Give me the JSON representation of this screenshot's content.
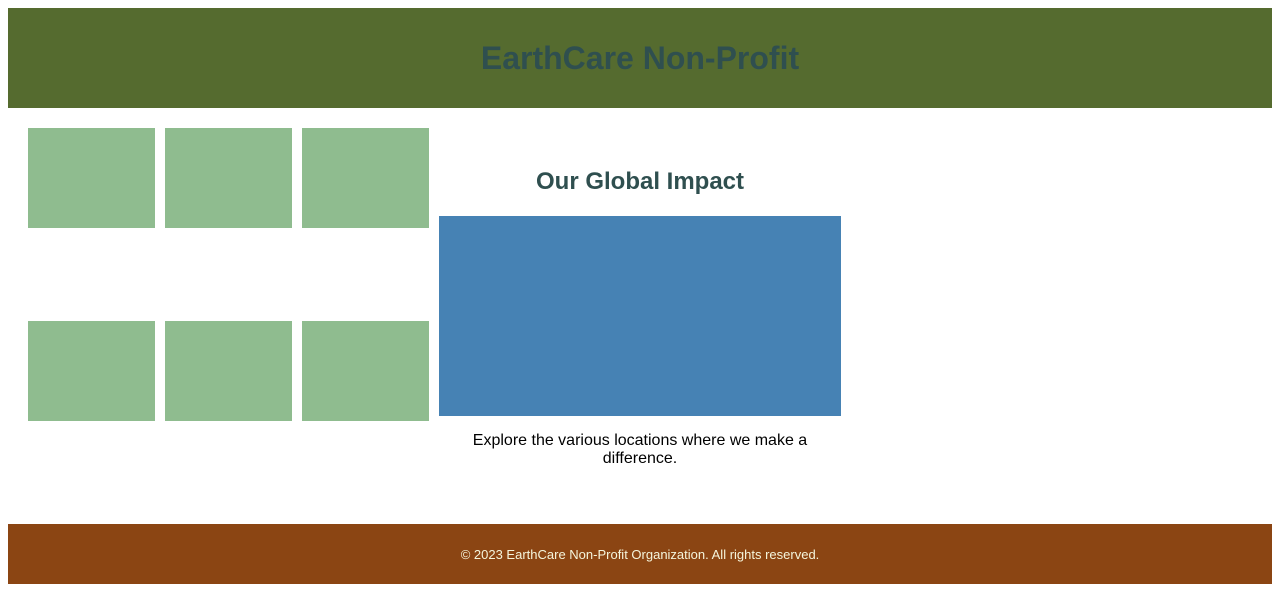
{
  "colors": {
    "header_bg": "#556b2f",
    "title_text": "#2f4f4f",
    "tile": "#8fbc8f",
    "map": "#4682b4",
    "footer_bg": "#8b4513",
    "footer_text": "#f5f5dc"
  },
  "header": {
    "title": "EarthCare Non-Profit"
  },
  "gallery": {
    "tiles": [
      "",
      "",
      "",
      "",
      "",
      ""
    ]
  },
  "impact": {
    "heading": "Our Global Impact",
    "caption": "Explore the various locations where we make a difference."
  },
  "footer": {
    "text": "© 2023 EarthCare Non-Profit Organization. All rights reserved."
  }
}
